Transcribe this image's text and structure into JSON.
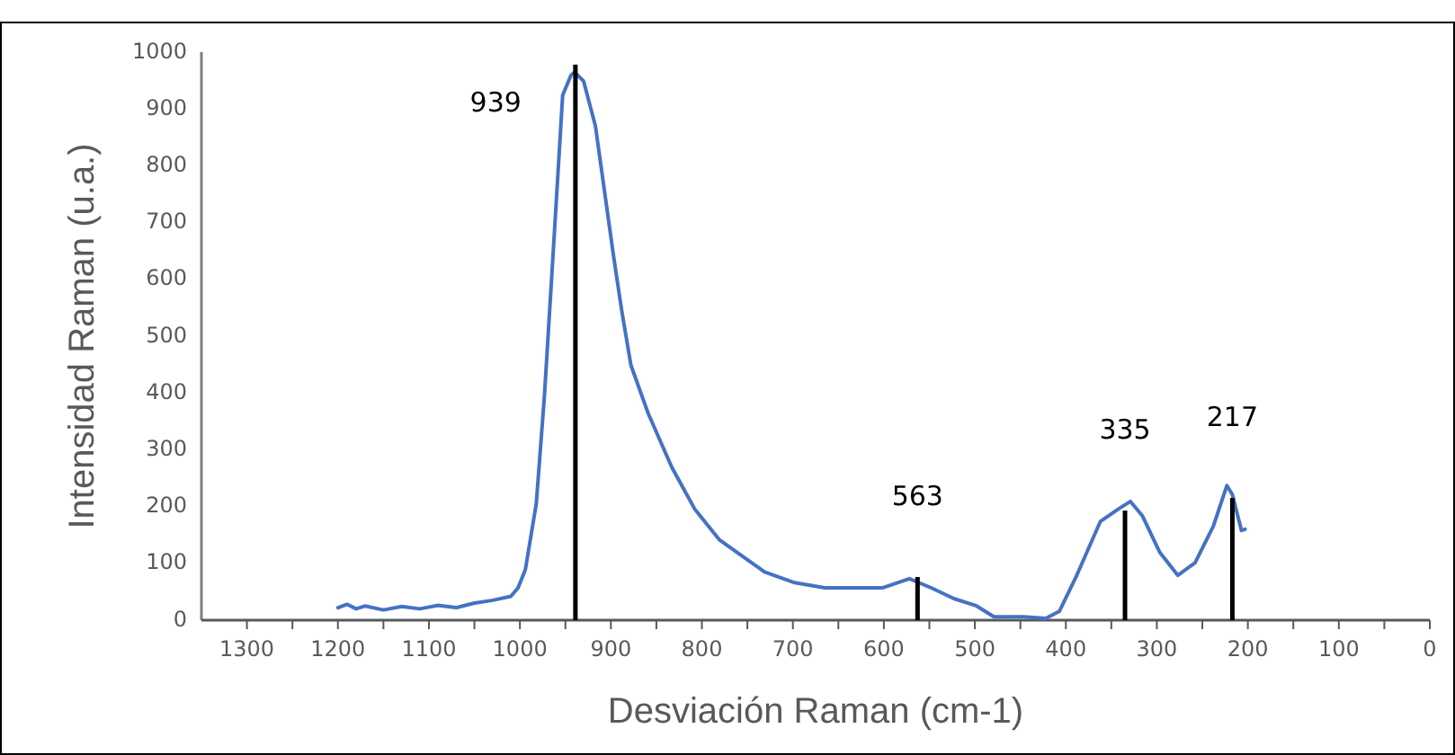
{
  "chart_data": {
    "type": "line",
    "xlabel": "Desviación Raman (cm-1)",
    "ylabel": "Intensidad Raman (u.a.)",
    "xlim": [
      1350,
      0
    ],
    "xticks": [
      1300,
      {
        "value": 1250,
        "label": null
      },
      1200,
      {
        "value": 1150,
        "label": null
      },
      1100,
      {
        "value": 1050,
        "label": null
      },
      1000,
      {
        "value": 950,
        "label": null
      },
      900,
      {
        "value": 850,
        "label": null
      },
      800,
      {
        "value": 750,
        "label": null
      },
      700,
      {
        "value": 650,
        "label": null
      },
      600,
      {
        "value": 550,
        "label": null
      },
      500,
      {
        "value": 450,
        "label": null
      },
      400,
      {
        "value": 350,
        "label": null
      },
      300,
      {
        "value": 250,
        "label": null
      },
      200,
      {
        "value": 150,
        "label": null
      },
      100,
      {
        "value": 50,
        "label": null
      },
      0
    ],
    "ylim": [
      0,
      1000
    ],
    "yticks": [
      0,
      100,
      200,
      300,
      400,
      500,
      600,
      700,
      800,
      900,
      1000
    ],
    "grid": false,
    "series": [
      {
        "color": "#4472c4",
        "x": [
          1200,
          1190,
          1180,
          1170,
          1150,
          1130,
          1110,
          1090,
          1070,
          1050,
          1030,
          1010,
          1002,
          994,
          982,
          973,
          963,
          953,
          944,
          940,
          930,
          917,
          897,
          888,
          878,
          859,
          833,
          808,
          781,
          762,
          731,
          698,
          665,
          634,
          601,
          572,
          548,
          523,
          498,
          479,
          446,
          422,
          407,
          388,
          362,
          342,
          329,
          316,
          297,
          277,
          258,
          238,
          223,
          217,
          207,
          203
        ],
        "values": [
          22,
          28,
          20,
          25,
          18,
          24,
          20,
          26,
          22,
          30,
          35,
          42,
          57,
          89,
          205,
          396,
          658,
          924,
          959,
          965,
          949,
          870,
          640,
          544,
          449,
          364,
          269,
          196,
          142,
          120,
          85,
          66,
          57,
          57,
          57,
          73,
          57,
          38,
          25,
          6,
          6,
          3,
          16,
          79,
          174,
          196,
          209,
          184,
          120,
          79,
          101,
          165,
          237,
          221,
          158,
          160
        ]
      },
      {
        "type": "bar",
        "color": "#000000",
        "x": [
          939,
          563,
          335,
          217
        ],
        "values": [
          978,
          76,
          193,
          215
        ]
      }
    ],
    "annotations": [
      {
        "text": "939",
        "x": 939,
        "y": 978
      },
      {
        "text": "563",
        "x": 563,
        "y": 76
      },
      {
        "text": "335",
        "x": 335,
        "y": 193
      },
      {
        "text": "217",
        "x": 217,
        "y": 215
      }
    ]
  }
}
